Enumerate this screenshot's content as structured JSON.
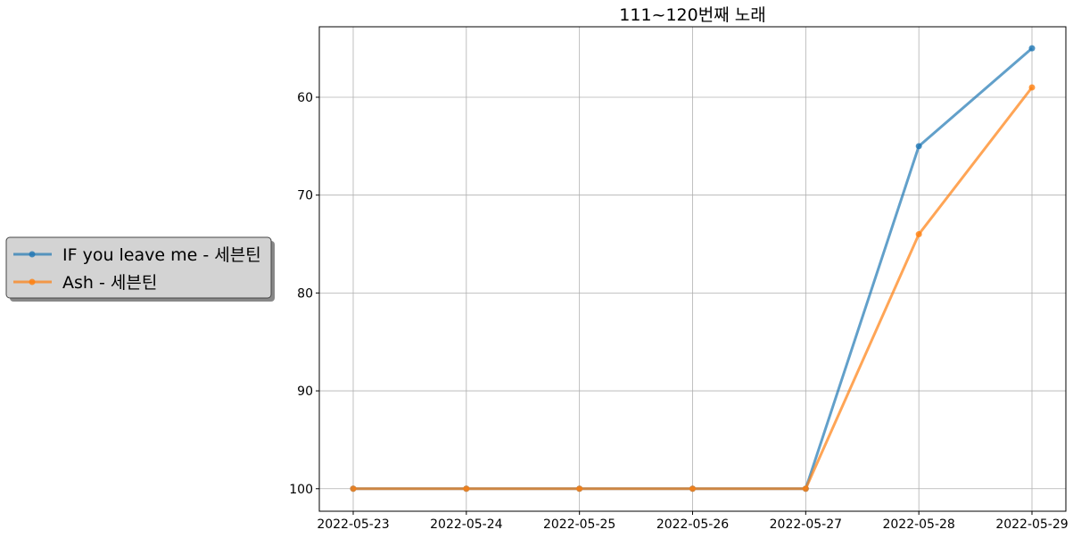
{
  "chart_data": {
    "type": "line",
    "title": "111~120번째 노래",
    "xlabel": "",
    "ylabel": "",
    "x": [
      "2022-05-23",
      "2022-05-24",
      "2022-05-25",
      "2022-05-26",
      "2022-05-27",
      "2022-05-28",
      "2022-05-29"
    ],
    "y_inverted": true,
    "ylim": [
      102.3,
      52.8
    ],
    "yticks": [
      60,
      70,
      80,
      90,
      100
    ],
    "grid": true,
    "legend_placement": "left-outside-center",
    "series": [
      {
        "name": "IF you leave me - 세븐틴",
        "values": [
          100,
          100,
          100,
          100,
          100,
          65,
          55
        ],
        "color": "#1f77b4",
        "marker": "circle"
      },
      {
        "name": "Ash - 세븐틴",
        "values": [
          100,
          100,
          100,
          100,
          100,
          74,
          59
        ],
        "color": "#ff7f0e",
        "marker": "circle"
      }
    ]
  }
}
